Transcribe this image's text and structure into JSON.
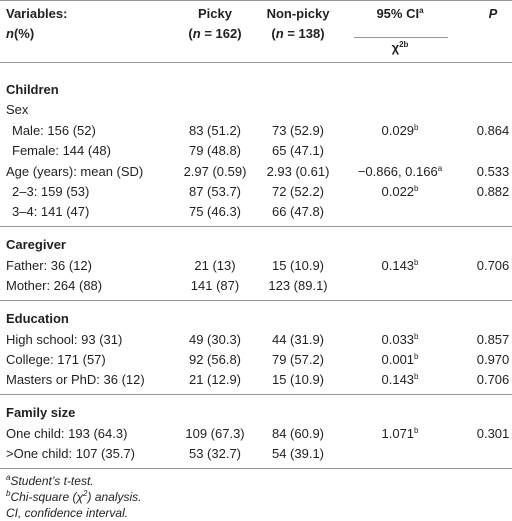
{
  "header": {
    "variables": [
      [
        {
          "text": "Variables:"
        }
      ],
      [
        {
          "text": "n",
          "italic": true
        },
        {
          "text": "(%)"
        }
      ]
    ],
    "picky": [
      [
        {
          "text": "Picky"
        }
      ],
      [
        {
          "text": "("
        },
        {
          "text": "n",
          "italic": true
        },
        {
          "text": " = 162)"
        }
      ]
    ],
    "nonpicky": [
      [
        {
          "text": "Non-picky"
        }
      ],
      [
        {
          "text": "("
        },
        {
          "text": "n",
          "italic": true
        },
        {
          "text": " = 138)"
        }
      ]
    ],
    "ci": [
      {
        "text": "95% CI"
      },
      {
        "text": "a",
        "sup": true
      }
    ],
    "chi": [
      {
        "text": "χ"
      },
      {
        "text": "2b",
        "sup": true
      }
    ],
    "p": "P"
  },
  "sections": [
    {
      "title": "Children",
      "rows": [
        {
          "label": "Sex",
          "rows": [
            {
              "label": "Male: 156 (52)",
              "cells": [
                "83 (51.2)",
                "73 (52.9)",
                [
                  {
                    "text": "0.029"
                  },
                  {
                    "text": "b",
                    "sup": true
                  }
                ],
                "0.864"
              ]
            },
            {
              "label": "Female: 144 (48)",
              "cells": [
                "79 (48.8)",
                "65 (47.1)",
                null,
                null
              ]
            }
          ]
        },
        {
          "label": "Age (years): mean (SD)",
          "cells": [
            "2.97 (0.59)",
            "2.93 (0.61)",
            [
              {
                "text": "−0.866, 0.166"
              },
              {
                "text": "a",
                "sup": true
              }
            ],
            "0.533"
          ],
          "rows": [
            {
              "label": "2–3: 159 (53)",
              "cells": [
                "87 (53.7)",
                "72 (52.2)",
                [
                  {
                    "text": "0.022"
                  },
                  {
                    "text": "b",
                    "sup": true
                  }
                ],
                "0.882"
              ]
            },
            {
              "label": "3–4: 141 (47)",
              "cells": [
                "75 (46.3)",
                "66 (47.8)",
                null,
                null
              ]
            }
          ]
        }
      ]
    },
    {
      "title": "Caregiver",
      "rows": [
        {
          "label": "Father: 36 (12)",
          "cells": [
            "21 (13)",
            "15 (10.9)",
            [
              {
                "text": "0.143"
              },
              {
                "text": "b",
                "sup": true
              }
            ],
            "0.706"
          ]
        },
        {
          "label": "Mother: 264 (88)",
          "cells": [
            "141 (87)",
            "123 (89.1)",
            null,
            null
          ]
        }
      ]
    },
    {
      "title": "Education",
      "rows": [
        {
          "label": "High school: 93 (31)",
          "cells": [
            "49 (30.3)",
            "44 (31.9)",
            [
              {
                "text": "0.033"
              },
              {
                "text": "b",
                "sup": true
              }
            ],
            "0.857"
          ]
        },
        {
          "label": "College: 171 (57)",
          "cells": [
            "92 (56.8)",
            "79 (57.2)",
            [
              {
                "text": "0.001"
              },
              {
                "text": "b",
                "sup": true
              }
            ],
            "0.970"
          ]
        },
        {
          "label": "Masters or PhD: 36 (12)",
          "cells": [
            "21 (12.9)",
            "15 (10.9)",
            [
              {
                "text": "0.143"
              },
              {
                "text": "b",
                "sup": true
              }
            ],
            "0.706"
          ]
        }
      ]
    },
    {
      "title": "Family size",
      "rows": [
        {
          "label": "One child: 193 (64.3)",
          "cells": [
            "109 (67.3)",
            "84 (60.9)",
            [
              {
                "text": "1.071"
              },
              {
                "text": "b",
                "sup": true
              }
            ],
            "0.301"
          ]
        },
        {
          "label": ">One child: 107 (35.7)",
          "cells": [
            "53 (32.7)",
            "54 (39.1)",
            null,
            null
          ]
        }
      ]
    }
  ],
  "footnotes": [
    [
      {
        "text": "a",
        "sup": true
      },
      {
        "text": "Student’s t-test."
      }
    ],
    [
      {
        "text": "b",
        "sup": true
      },
      {
        "text": "Chi-square ("
      },
      {
        "text": "χ"
      },
      {
        "text": "2",
        "sup": true
      },
      {
        "text": ") analysis."
      }
    ],
    [
      {
        "text": "CI, confidence interval."
      }
    ]
  ]
}
